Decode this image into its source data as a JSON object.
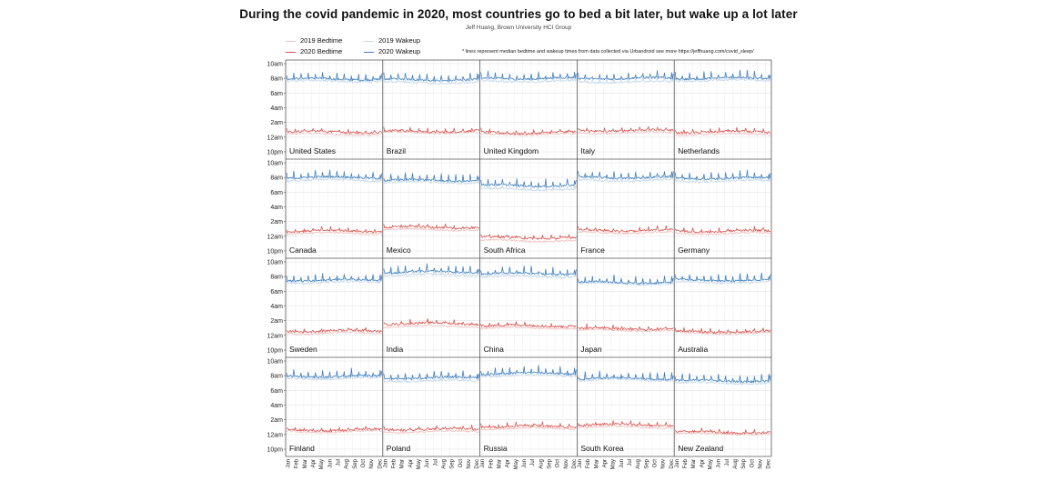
{
  "title": "During the covid pandemic in 2020, most countries go to bed a bit later, but wake up a lot later",
  "subtitle": "Jeff Huang, Brown University HCI Group",
  "note": "* lines represent median bedtime and wakeup times from data collected via Urbandroid   see more https://jeffhuang.com/covid_sleep/",
  "legend": {
    "bed2019": "2019 Bedtime",
    "bed2020": "2020 Bedtime",
    "wake2019": "2019 Wakeup",
    "wake2020": "2020 Wakeup"
  },
  "colors": {
    "bed2019": "#f2c4c4",
    "bed2020": "#d9534f",
    "wake2019": "#c6d9ec",
    "wake2020": "#3f7fbf"
  },
  "chart_data": {
    "type": "line",
    "title": "During the covid pandemic in 2020, most countries go to bed a bit later, but wake up a lot later",
    "ylabel_ticks": [
      "10am",
      "8am",
      "6am",
      "4am",
      "2am",
      "12am",
      "10pm"
    ],
    "y_tick_hours": [
      10,
      8,
      6,
      4,
      2,
      0,
      -2
    ],
    "ylim": [
      -2,
      10
    ],
    "x_ticks": [
      "Jan",
      "Feb",
      "Mar",
      "Apr",
      "May",
      "Jun",
      "Jul",
      "Aug",
      "Sep",
      "Oct",
      "Nov",
      "Dec"
    ],
    "grid": true,
    "countries": [
      {
        "name": "United States",
        "bed2019": 0.4,
        "bed2020": 0.7,
        "wake2019": 7.6,
        "wake2020": 7.9
      },
      {
        "name": "Brazil",
        "bed2019": 0.6,
        "bed2020": 0.8,
        "wake2019": 7.4,
        "wake2020": 7.8
      },
      {
        "name": "United Kingdom",
        "bed2019": 0.4,
        "bed2020": 0.6,
        "wake2019": 7.6,
        "wake2020": 8.0
      },
      {
        "name": "Italy",
        "bed2019": 0.6,
        "bed2020": 0.9,
        "wake2019": 7.5,
        "wake2020": 8.0
      },
      {
        "name": "Netherlands",
        "bed2019": 0.4,
        "bed2020": 0.7,
        "wake2019": 7.7,
        "wake2020": 8.0
      },
      {
        "name": "Canada",
        "bed2019": 0.4,
        "bed2020": 0.7,
        "wake2019": 7.6,
        "wake2020": 8.0
      },
      {
        "name": "Mexico",
        "bed2019": 0.9,
        "bed2020": 1.2,
        "wake2019": 7.3,
        "wake2020": 7.6
      },
      {
        "name": "South Africa",
        "bed2019": -0.6,
        "bed2020": -0.2,
        "wake2019": 6.4,
        "wake2020": 6.9
      },
      {
        "name": "France",
        "bed2019": 0.5,
        "bed2020": 0.8,
        "wake2019": 7.6,
        "wake2020": 8.0
      },
      {
        "name": "Germany",
        "bed2019": 0.4,
        "bed2020": 0.7,
        "wake2019": 7.5,
        "wake2020": 7.9
      },
      {
        "name": "Sweden",
        "bed2019": 0.3,
        "bed2020": 0.6,
        "wake2019": 7.2,
        "wake2020": 7.5
      },
      {
        "name": "India",
        "bed2019": 1.2,
        "bed2020": 1.6,
        "wake2019": 8.2,
        "wake2020": 8.6
      },
      {
        "name": "China",
        "bed2019": 1.0,
        "bed2020": 1.3,
        "wake2019": 8.0,
        "wake2020": 8.4
      },
      {
        "name": "Japan",
        "bed2019": 0.7,
        "bed2020": 0.9,
        "wake2019": 7.0,
        "wake2020": 7.2
      },
      {
        "name": "Australia",
        "bed2019": 0.3,
        "bed2020": 0.5,
        "wake2019": 7.2,
        "wake2020": 7.5
      },
      {
        "name": "Finland",
        "bed2019": 0.4,
        "bed2020": 0.6,
        "wake2019": 7.6,
        "wake2020": 7.9
      },
      {
        "name": "Poland",
        "bed2019": 0.4,
        "bed2020": 0.7,
        "wake2019": 7.3,
        "wake2020": 7.7
      },
      {
        "name": "Russia",
        "bed2019": 0.8,
        "bed2020": 1.1,
        "wake2019": 8.0,
        "wake2020": 8.3
      },
      {
        "name": "South Korea",
        "bed2019": 1.0,
        "bed2020": 1.3,
        "wake2019": 7.4,
        "wake2020": 7.6
      },
      {
        "name": "New Zealand",
        "bed2019": 0.1,
        "bed2020": 0.3,
        "wake2019": 7.0,
        "wake2020": 7.3
      }
    ]
  }
}
